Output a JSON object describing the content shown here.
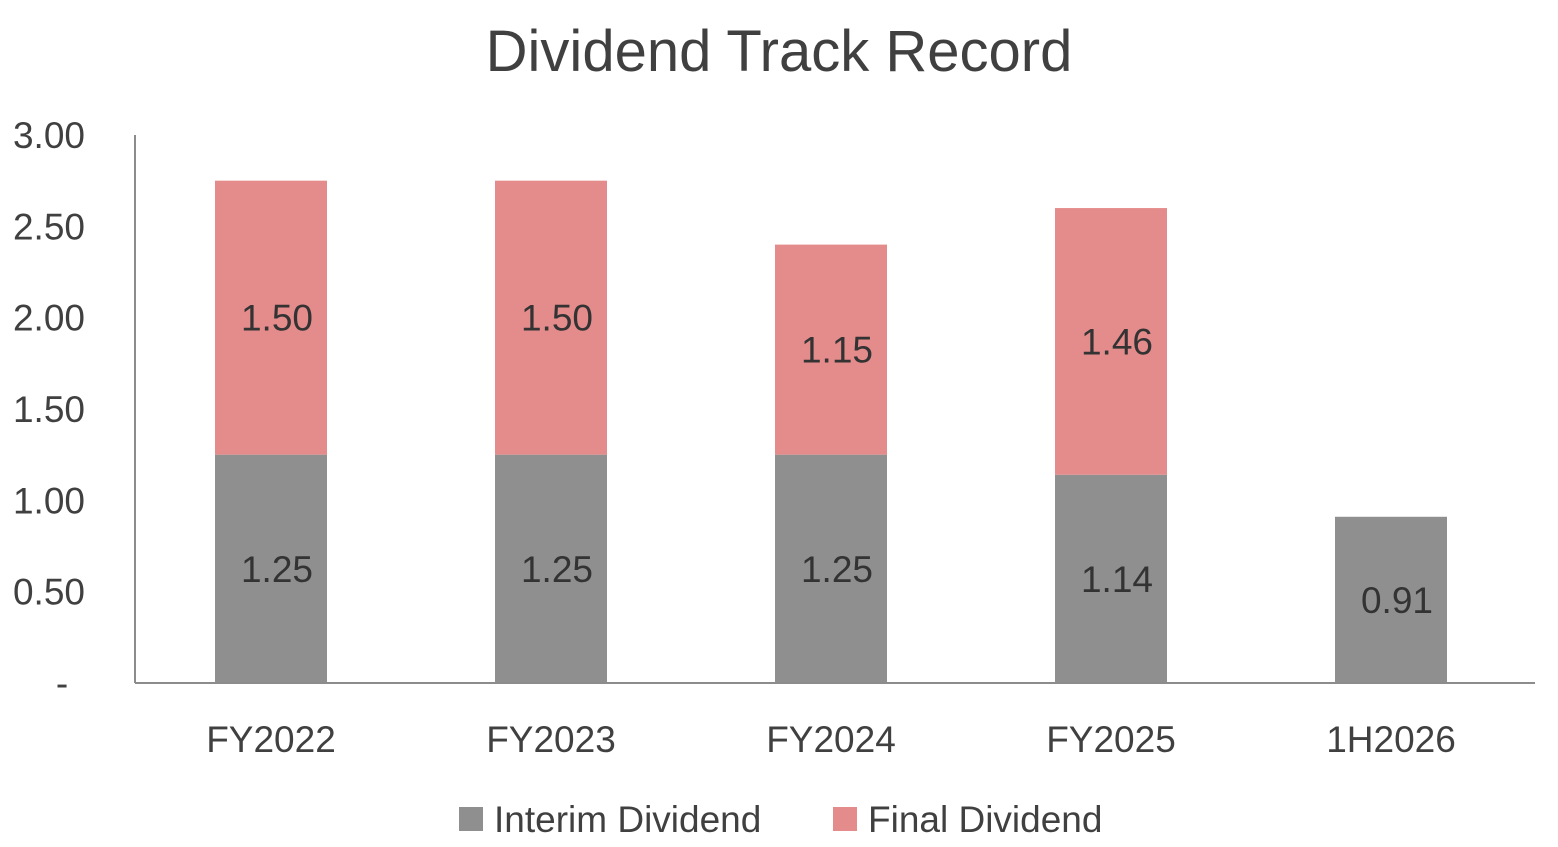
{
  "chart_data": {
    "type": "bar",
    "stacked": true,
    "title": "Dividend Track Record",
    "xlabel": "",
    "ylabel": "",
    "ylim": [
      0,
      3
    ],
    "y_ticks": [
      {
        "value": 0,
        "label": "-"
      },
      {
        "value": 0.5,
        "label": "0.50"
      },
      {
        "value": 1.0,
        "label": "1.00"
      },
      {
        "value": 1.5,
        "label": "1.50"
      },
      {
        "value": 2.0,
        "label": "2.00"
      },
      {
        "value": 2.5,
        "label": "2.50"
      },
      {
        "value": 3.0,
        "label": "3.00"
      }
    ],
    "grid": false,
    "legend_position": "bottom",
    "categories": [
      "FY2022",
      "FY2023",
      "FY2024",
      "FY2025",
      "1H2026"
    ],
    "series": [
      {
        "name": "Interim Dividend",
        "color": "#8f8f8f",
        "values": [
          1.25,
          1.25,
          1.25,
          1.14,
          0.91
        ],
        "labels": [
          "1.25",
          "1.25",
          "1.25",
          "1.14",
          "0.91"
        ]
      },
      {
        "name": "Final Dividend",
        "color": "#e48b8b",
        "values": [
          1.5,
          1.5,
          1.15,
          1.46,
          null
        ],
        "labels": [
          "1.50",
          "1.50",
          "1.15",
          "1.46",
          null
        ]
      }
    ]
  }
}
